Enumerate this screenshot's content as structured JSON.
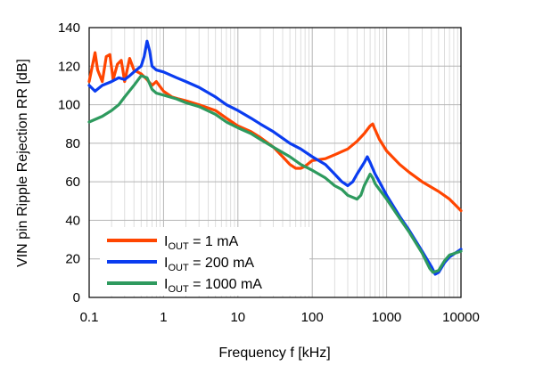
{
  "chart_data": {
    "type": "line",
    "title": "",
    "xlabel": "Frequency f [kHz]",
    "ylabel": "VIN pin Ripple Rejection RR [dB]",
    "xscale": "log",
    "xlim": [
      0.1,
      10000
    ],
    "ylim": [
      0,
      140
    ],
    "x_tick_labels": [
      "0.1",
      "1",
      "10",
      "100",
      "1000",
      "10000"
    ],
    "y_tick_labels": [
      "0",
      "20",
      "40",
      "60",
      "80",
      "100",
      "120",
      "140"
    ],
    "y_ticks": [
      0,
      20,
      40,
      60,
      80,
      100,
      120,
      140
    ],
    "x_ticks": [
      0.1,
      1,
      10,
      100,
      1000,
      10000
    ],
    "grid": true,
    "legend_position": "bottom-left",
    "series": [
      {
        "name": "I_OUT = 1 mA",
        "legend": {
          "main": "I",
          "sub": "OUT",
          "rest": " = 1 mA"
        },
        "color": "#ff4500",
        "points": [
          [
            0.1,
            112
          ],
          [
            0.11,
            120
          ],
          [
            0.12,
            127
          ],
          [
            0.13,
            118
          ],
          [
            0.15,
            112
          ],
          [
            0.17,
            125
          ],
          [
            0.19,
            126
          ],
          [
            0.21,
            113
          ],
          [
            0.24,
            121
          ],
          [
            0.27,
            123
          ],
          [
            0.3,
            112
          ],
          [
            0.35,
            124
          ],
          [
            0.4,
            118
          ],
          [
            0.5,
            116
          ],
          [
            0.6,
            113
          ],
          [
            0.7,
            110
          ],
          [
            0.8,
            112
          ],
          [
            1,
            107
          ],
          [
            1.3,
            104
          ],
          [
            1.6,
            103
          ],
          [
            2,
            102
          ],
          [
            3,
            100
          ],
          [
            5,
            97
          ],
          [
            7,
            93
          ],
          [
            10,
            89
          ],
          [
            15,
            86
          ],
          [
            20,
            83
          ],
          [
            30,
            78
          ],
          [
            40,
            73
          ],
          [
            50,
            69
          ],
          [
            60,
            67
          ],
          [
            70,
            67
          ],
          [
            80,
            68
          ],
          [
            100,
            71
          ],
          [
            150,
            72
          ],
          [
            200,
            74
          ],
          [
            300,
            77
          ],
          [
            400,
            81
          ],
          [
            500,
            85
          ],
          [
            600,
            89
          ],
          [
            650,
            90
          ],
          [
            700,
            87
          ],
          [
            800,
            82
          ],
          [
            1000,
            76
          ],
          [
            1500,
            69
          ],
          [
            2000,
            65
          ],
          [
            3000,
            60
          ],
          [
            5000,
            55
          ],
          [
            7000,
            51
          ],
          [
            10000,
            45
          ]
        ]
      },
      {
        "name": "I_OUT = 200 mA",
        "legend": {
          "main": "I",
          "sub": "OUT",
          "rest": " = 200 mA"
        },
        "color": "#0a3cf0",
        "points": [
          [
            0.1,
            110
          ],
          [
            0.12,
            107
          ],
          [
            0.15,
            110
          ],
          [
            0.2,
            112
          ],
          [
            0.25,
            114
          ],
          [
            0.3,
            113
          ],
          [
            0.35,
            115
          ],
          [
            0.4,
            117
          ],
          [
            0.5,
            120
          ],
          [
            0.55,
            125
          ],
          [
            0.6,
            133
          ],
          [
            0.65,
            128
          ],
          [
            0.7,
            120
          ],
          [
            0.8,
            118
          ],
          [
            1,
            117
          ],
          [
            1.5,
            114
          ],
          [
            2,
            112
          ],
          [
            3,
            109
          ],
          [
            5,
            104
          ],
          [
            7,
            100
          ],
          [
            10,
            97
          ],
          [
            15,
            93
          ],
          [
            20,
            90
          ],
          [
            30,
            86
          ],
          [
            50,
            80
          ],
          [
            70,
            77
          ],
          [
            100,
            73
          ],
          [
            150,
            69
          ],
          [
            200,
            64
          ],
          [
            250,
            60
          ],
          [
            300,
            58
          ],
          [
            350,
            60
          ],
          [
            400,
            64
          ],
          [
            500,
            70
          ],
          [
            550,
            73
          ],
          [
            600,
            70
          ],
          [
            700,
            64
          ],
          [
            800,
            60
          ],
          [
            1000,
            53
          ],
          [
            1500,
            42
          ],
          [
            2000,
            35
          ],
          [
            3000,
            24
          ],
          [
            4000,
            16
          ],
          [
            4500,
            12
          ],
          [
            5000,
            13
          ],
          [
            6000,
            18
          ],
          [
            7000,
            21
          ],
          [
            10000,
            25
          ]
        ]
      },
      {
        "name": "I_OUT = 1000 mA",
        "legend": {
          "main": "I",
          "sub": "OUT",
          "rest": " = 1000 mA"
        },
        "color": "#2e9a5e",
        "points": [
          [
            0.1,
            91
          ],
          [
            0.15,
            94
          ],
          [
            0.2,
            97
          ],
          [
            0.25,
            100
          ],
          [
            0.3,
            104
          ],
          [
            0.4,
            110
          ],
          [
            0.5,
            115
          ],
          [
            0.6,
            114
          ],
          [
            0.7,
            108
          ],
          [
            0.8,
            106
          ],
          [
            1,
            105
          ],
          [
            1.5,
            103
          ],
          [
            2,
            101
          ],
          [
            3,
            99
          ],
          [
            5,
            95
          ],
          [
            7,
            91
          ],
          [
            10,
            88
          ],
          [
            15,
            85
          ],
          [
            20,
            82
          ],
          [
            30,
            78
          ],
          [
            50,
            73
          ],
          [
            70,
            69
          ],
          [
            100,
            66
          ],
          [
            150,
            62
          ],
          [
            200,
            58
          ],
          [
            250,
            56
          ],
          [
            300,
            53
          ],
          [
            400,
            51
          ],
          [
            450,
            53
          ],
          [
            500,
            58
          ],
          [
            600,
            64
          ],
          [
            650,
            62
          ],
          [
            700,
            59
          ],
          [
            800,
            56
          ],
          [
            1000,
            51
          ],
          [
            1500,
            41
          ],
          [
            2000,
            34
          ],
          [
            3000,
            23
          ],
          [
            3800,
            15
          ],
          [
            4200,
            13
          ],
          [
            5000,
            14
          ],
          [
            6000,
            19
          ],
          [
            7000,
            22
          ],
          [
            10000,
            24
          ]
        ]
      }
    ]
  }
}
